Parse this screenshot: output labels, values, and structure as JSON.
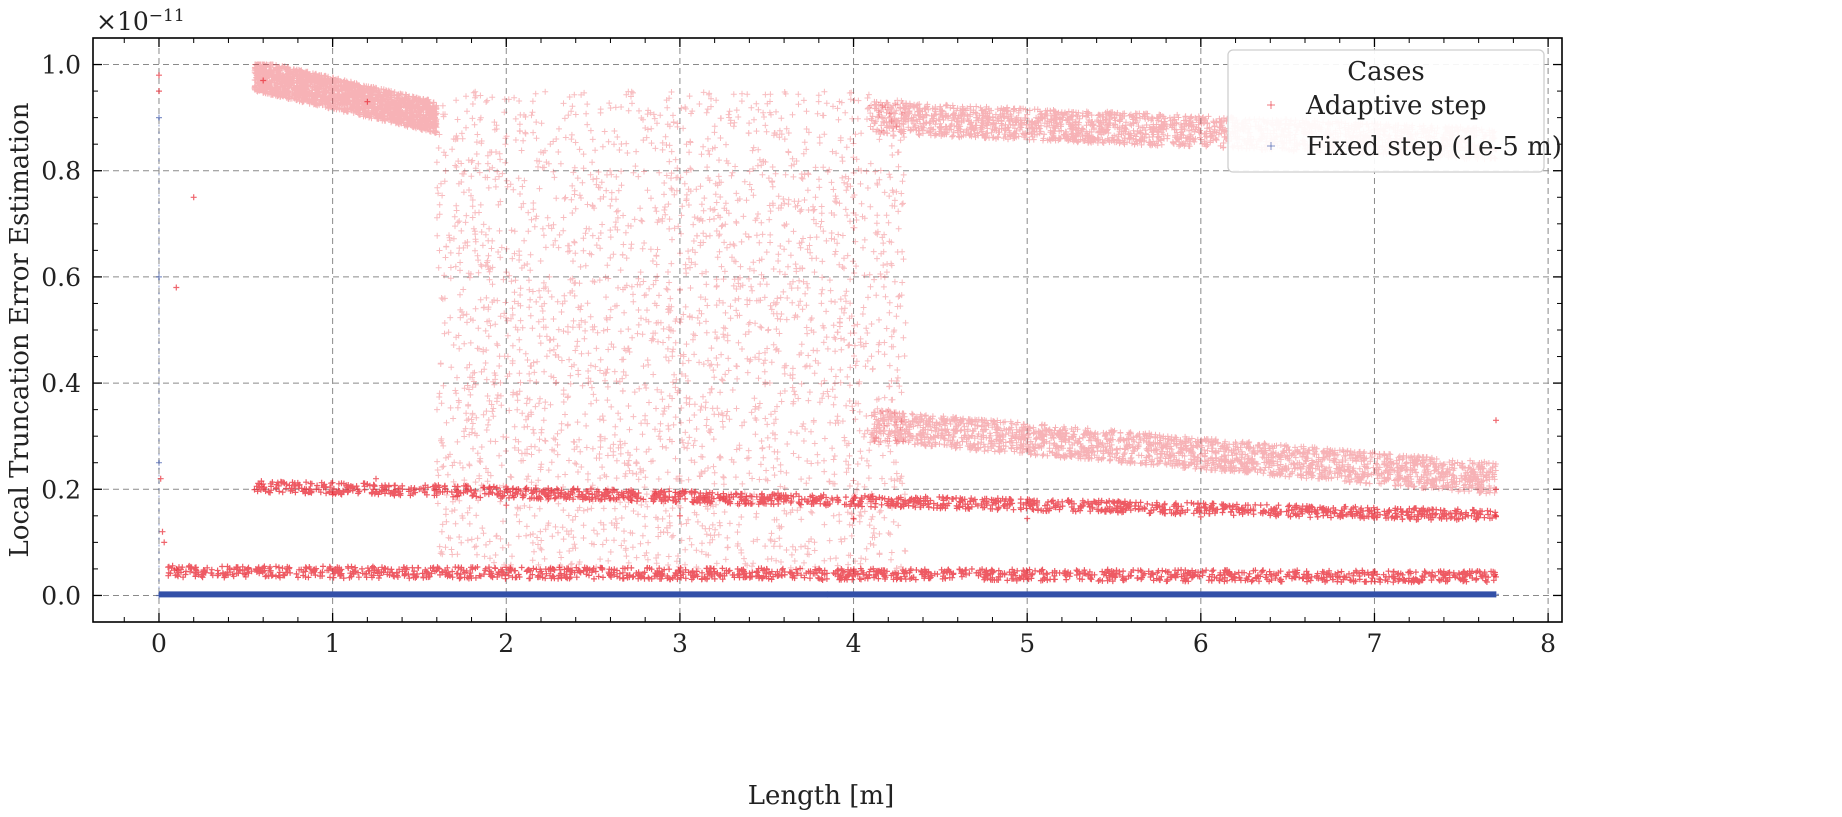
{
  "chart_data": {
    "type": "scatter",
    "title": "",
    "xlabel": "Length [m]",
    "ylabel": "Local Truncation Error Estimation",
    "y_multiplier_text": "×10",
    "y_multiplier_exp": "−11",
    "xlim": [
      -0.38,
      8.08
    ],
    "ylim": [
      -0.05,
      1.05
    ],
    "x_ticks": [
      0,
      1,
      2,
      3,
      4,
      5,
      6,
      7,
      8
    ],
    "x_tick_labels": [
      "0",
      "1",
      "2",
      "3",
      "4",
      "5",
      "6",
      "7",
      "8"
    ],
    "y_ticks": [
      0.0,
      0.2,
      0.4,
      0.6,
      0.8,
      1.0
    ],
    "y_tick_labels": [
      "0.0",
      "0.2",
      "0.4",
      "0.6",
      "0.8",
      "1.0"
    ],
    "grid": true,
    "legend": {
      "title": "Cases",
      "placement": "top-right",
      "entries": [
        "Adaptive step",
        "Fixed step (1e-5 m)"
      ]
    },
    "colors": {
      "adaptive": "#e8232f",
      "fixed": "#3350a8"
    },
    "series": [
      {
        "name": "Adaptive step",
        "marker": "plus",
        "bands": [
          {
            "x": [
              0.55,
              7.7
            ],
            "y_start": 0.205,
            "y_end": 0.15,
            "density": "dense"
          },
          {
            "x": [
              0.05,
              7.7
            ],
            "y_start": 0.045,
            "y_end": 0.035,
            "density": "dense"
          },
          {
            "x": [
              0.55,
              1.6
            ],
            "y_start": 0.98,
            "y_end": 0.9,
            "density": "medium"
          },
          {
            "x": [
              4.1,
              7.7
            ],
            "y_start": 0.9,
            "y_end": 0.85,
            "density": "medium"
          },
          {
            "x": [
              4.1,
              7.7
            ],
            "y_start": 0.32,
            "y_end": 0.22,
            "density": "medium"
          },
          {
            "x": [
              1.6,
              4.3
            ],
            "y_start": 0.05,
            "y_end": 0.95,
            "density": "sparse"
          }
        ],
        "points_sample": [
          {
            "x": 0.0,
            "y": 0.98
          },
          {
            "x": 0.0,
            "y": 0.95
          },
          {
            "x": 0.01,
            "y": 0.22
          },
          {
            "x": 0.02,
            "y": 0.12
          },
          {
            "x": 0.03,
            "y": 0.1
          },
          {
            "x": 0.1,
            "y": 0.05
          },
          {
            "x": 0.5,
            "y": 0.035
          },
          {
            "x": 0.6,
            "y": 0.21
          },
          {
            "x": 1.0,
            "y": 0.19
          },
          {
            "x": 1.25,
            "y": 0.22
          },
          {
            "x": 2.0,
            "y": 0.17
          },
          {
            "x": 3.0,
            "y": 0.15
          },
          {
            "x": 4.0,
            "y": 0.145
          },
          {
            "x": 5.0,
            "y": 0.145
          },
          {
            "x": 6.0,
            "y": 0.148
          },
          {
            "x": 7.7,
            "y": 0.15
          },
          {
            "x": 7.7,
            "y": 0.035
          },
          {
            "x": 7.7,
            "y": 0.2
          },
          {
            "x": 7.7,
            "y": 0.33
          },
          {
            "x": 7.7,
            "y": 0.84
          },
          {
            "x": 0.6,
            "y": 0.97
          },
          {
            "x": 1.2,
            "y": 0.93
          },
          {
            "x": 0.2,
            "y": 0.75
          },
          {
            "x": 0.1,
            "y": 0.58
          }
        ]
      },
      {
        "name": "Fixed step (1e-5 m)",
        "marker": "plus",
        "x_range": [
          0.0,
          7.7
        ],
        "y_value": 0.002,
        "points_sample": [
          {
            "x": 0.0,
            "y": 0.0
          },
          {
            "x": 0.0,
            "y": 0.25
          },
          {
            "x": 0.0,
            "y": 0.6
          },
          {
            "x": 0.0,
            "y": 0.9
          },
          {
            "x": 3.85,
            "y": 0.002
          },
          {
            "x": 7.7,
            "y": 0.002
          }
        ]
      }
    ]
  }
}
